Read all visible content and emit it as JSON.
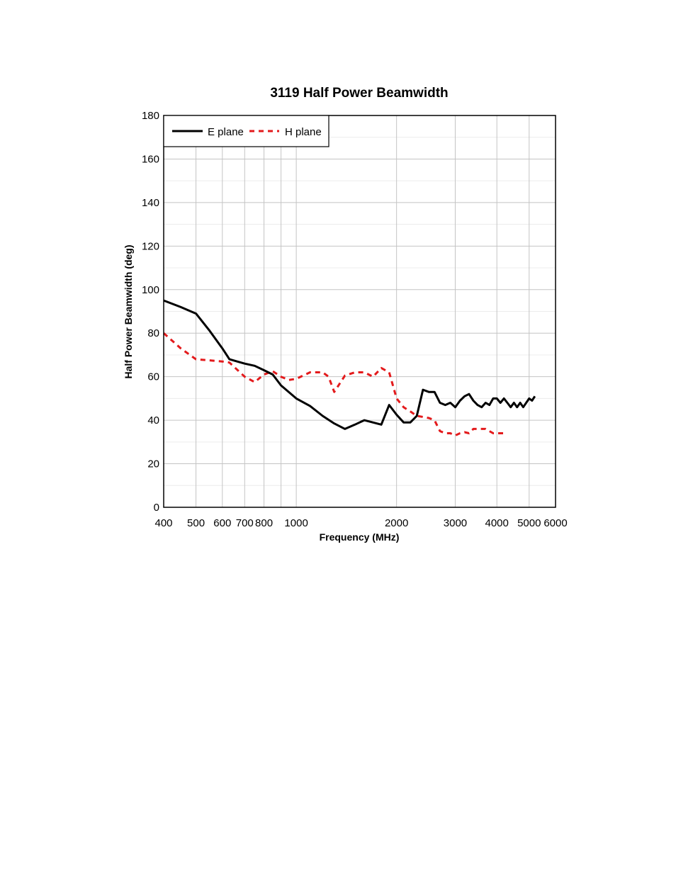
{
  "chart_data": {
    "type": "line",
    "title": "3119 Half Power Beamwidth",
    "xlabel": "Frequency (MHz)",
    "ylabel": "Half Power Beamwidth (deg)",
    "x_scale": "log",
    "xlim": [
      400,
      6000
    ],
    "ylim": [
      0,
      180
    ],
    "x_ticks": [
      400,
      500,
      600,
      700,
      800,
      1000,
      2000,
      3000,
      4000,
      5000,
      6000
    ],
    "x_tick_labels": [
      "400",
      "500",
      "600",
      "700",
      "800",
      "1000",
      "2000",
      "3000",
      "4000",
      "5000",
      "6000"
    ],
    "y_ticks": [
      0,
      20,
      40,
      60,
      80,
      100,
      120,
      140,
      160,
      180
    ],
    "y_tick_labels": [
      "0",
      "20",
      "40",
      "60",
      "80",
      "100",
      "120",
      "140",
      "160",
      "180"
    ],
    "x_major_grid": [
      400,
      500,
      600,
      700,
      800,
      900,
      1000,
      2000,
      3000,
      4000,
      5000,
      6000
    ],
    "y_minor_grid": [
      10,
      30,
      50,
      70,
      90,
      110,
      130,
      150,
      170
    ],
    "grid": true,
    "legend_position": "top-left",
    "series": [
      {
        "name": "E plane",
        "color": "#000000",
        "style": "solid",
        "points": [
          [
            400,
            95
          ],
          [
            450,
            92
          ],
          [
            500,
            89
          ],
          [
            550,
            81
          ],
          [
            600,
            73
          ],
          [
            630,
            68
          ],
          [
            700,
            66
          ],
          [
            750,
            65
          ],
          [
            800,
            63
          ],
          [
            850,
            61
          ],
          [
            900,
            56
          ],
          [
            1000,
            50
          ],
          [
            1100,
            46.5
          ],
          [
            1200,
            42
          ],
          [
            1300,
            38.5
          ],
          [
            1400,
            36
          ],
          [
            1500,
            38
          ],
          [
            1600,
            40
          ],
          [
            1800,
            38
          ],
          [
            1900,
            47
          ],
          [
            2000,
            42.5
          ],
          [
            2100,
            39
          ],
          [
            2200,
            39
          ],
          [
            2300,
            42
          ],
          [
            2400,
            54
          ],
          [
            2500,
            53
          ],
          [
            2600,
            53
          ],
          [
            2700,
            48
          ],
          [
            2800,
            47
          ],
          [
            2900,
            48
          ],
          [
            3000,
            46
          ],
          [
            3100,
            49
          ],
          [
            3200,
            51
          ],
          [
            3300,
            52
          ],
          [
            3400,
            49
          ],
          [
            3500,
            47
          ],
          [
            3600,
            46
          ],
          [
            3700,
            48
          ],
          [
            3800,
            47
          ],
          [
            3900,
            50
          ],
          [
            4000,
            50
          ],
          [
            4100,
            48
          ],
          [
            4200,
            50
          ],
          [
            4300,
            48
          ],
          [
            4400,
            46
          ],
          [
            4500,
            48
          ],
          [
            4600,
            46
          ],
          [
            4700,
            48
          ],
          [
            4800,
            46
          ],
          [
            4900,
            48
          ],
          [
            5000,
            50
          ],
          [
            5100,
            49
          ],
          [
            5200,
            51
          ]
        ]
      },
      {
        "name": "H plane",
        "color": "#e31a1c",
        "style": "dashed",
        "points": [
          [
            400,
            80
          ],
          [
            450,
            73
          ],
          [
            500,
            68
          ],
          [
            550,
            67.5
          ],
          [
            600,
            67
          ],
          [
            630,
            66.5
          ],
          [
            700,
            60
          ],
          [
            750,
            57.5
          ],
          [
            800,
            61
          ],
          [
            850,
            62.5
          ],
          [
            900,
            60
          ],
          [
            950,
            58.5
          ],
          [
            1000,
            59
          ],
          [
            1100,
            62
          ],
          [
            1200,
            62
          ],
          [
            1250,
            60
          ],
          [
            1300,
            53
          ],
          [
            1400,
            60.5
          ],
          [
            1500,
            62
          ],
          [
            1600,
            62
          ],
          [
            1700,
            60
          ],
          [
            1800,
            64
          ],
          [
            1900,
            62
          ],
          [
            2000,
            50
          ],
          [
            2100,
            46
          ],
          [
            2200,
            44
          ],
          [
            2300,
            42
          ],
          [
            2400,
            41.5
          ],
          [
            2500,
            41
          ],
          [
            2600,
            40
          ],
          [
            2700,
            35
          ],
          [
            2800,
            34
          ],
          [
            2900,
            34
          ],
          [
            3000,
            33
          ],
          [
            3100,
            34
          ],
          [
            3200,
            34.5
          ],
          [
            3300,
            34
          ],
          [
            3400,
            36
          ],
          [
            3500,
            36
          ],
          [
            3600,
            36
          ],
          [
            3700,
            36
          ],
          [
            3800,
            35
          ],
          [
            3900,
            34
          ],
          [
            4000,
            34
          ],
          [
            4100,
            34
          ],
          [
            4200,
            34
          ]
        ]
      }
    ]
  }
}
